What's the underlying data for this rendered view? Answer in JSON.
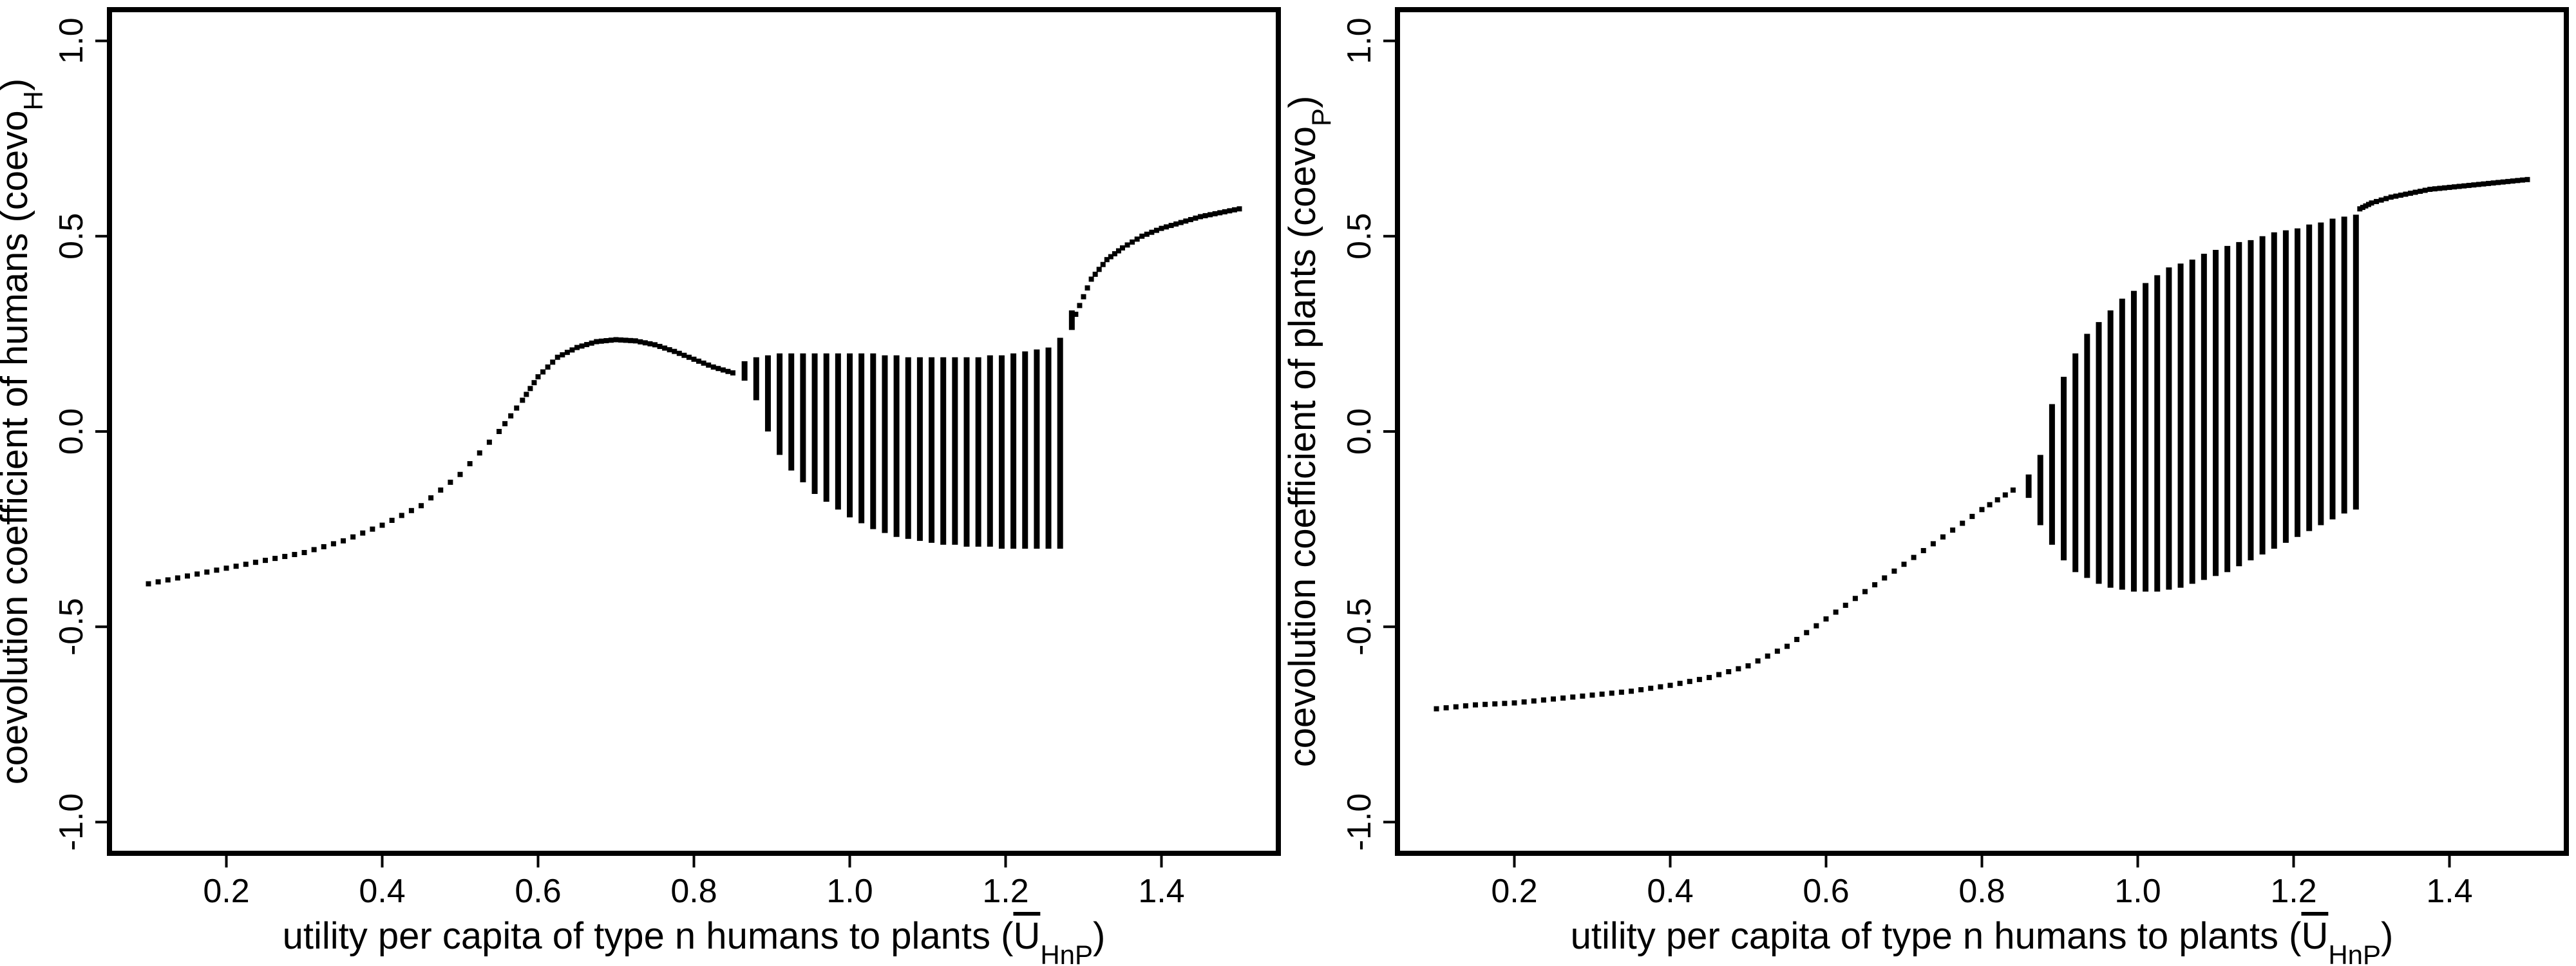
{
  "figure": {
    "colors": {
      "ink": "#000000",
      "background": "#ffffff"
    }
  },
  "chart_data": [
    {
      "type": "scatter",
      "title": "",
      "xlabel": "utility per capita of type n humans to plants (",
      "xlabel_symbol": "U",
      "xlabel_subscript": "HnP",
      "xlabel_close": ")",
      "ylabel": "coevolution coefficient of humans (coevo",
      "ylabel_subscript": "H",
      "ylabel_close": ")",
      "xlim": [
        0.05,
        1.55
      ],
      "ylim": [
        -1.08,
        1.08
      ],
      "x_ticks": [
        "0.2",
        "0.4",
        "0.6",
        "0.8",
        "1.0",
        "1.2",
        "1.4"
      ],
      "y_ticks": [
        "-1.0",
        "-0.5",
        "0.0",
        "0.5",
        "1.0"
      ],
      "grid": false,
      "series": [
        {
          "x": [
            0.1,
            0.15,
            0.2,
            0.25,
            0.3,
            0.35,
            0.4,
            0.45,
            0.5,
            0.55,
            0.58,
            0.6,
            0.625,
            0.65,
            0.675,
            0.7,
            0.725,
            0.75,
            0.775,
            0.8,
            0.825,
            0.85,
            1.29,
            1.31,
            1.33,
            1.35,
            1.375,
            1.4,
            1.425,
            1.45,
            1.475,
            1.5
          ],
          "y": [
            -0.39,
            -0.37,
            -0.35,
            -0.33,
            -0.31,
            -0.28,
            -0.24,
            -0.19,
            -0.11,
            0.0,
            0.08,
            0.14,
            0.19,
            0.215,
            0.23,
            0.235,
            0.232,
            0.222,
            0.205,
            0.185,
            0.165,
            0.15,
            0.3,
            0.39,
            0.44,
            0.47,
            0.5,
            0.52,
            0.535,
            0.55,
            0.56,
            0.57
          ]
        }
      ],
      "bifurcation_ranges": [
        {
          "x": 0.865,
          "ymin": 0.13,
          "ymax": 0.18
        },
        {
          "x": 0.88,
          "ymin": 0.08,
          "ymax": 0.19
        },
        {
          "x": 0.895,
          "ymin": 0.0,
          "ymax": 0.195
        },
        {
          "x": 0.91,
          "ymin": -0.06,
          "ymax": 0.2
        },
        {
          "x": 0.925,
          "ymin": -0.1,
          "ymax": 0.2
        },
        {
          "x": 0.94,
          "ymin": -0.13,
          "ymax": 0.2
        },
        {
          "x": 0.955,
          "ymin": -0.16,
          "ymax": 0.2
        },
        {
          "x": 0.97,
          "ymin": -0.18,
          "ymax": 0.2
        },
        {
          "x": 0.985,
          "ymin": -0.2,
          "ymax": 0.2
        },
        {
          "x": 1.0,
          "ymin": -0.22,
          "ymax": 0.2
        },
        {
          "x": 1.015,
          "ymin": -0.235,
          "ymax": 0.2
        },
        {
          "x": 1.03,
          "ymin": -0.25,
          "ymax": 0.2
        },
        {
          "x": 1.045,
          "ymin": -0.26,
          "ymax": 0.195
        },
        {
          "x": 1.06,
          "ymin": -0.27,
          "ymax": 0.195
        },
        {
          "x": 1.075,
          "ymin": -0.275,
          "ymax": 0.19
        },
        {
          "x": 1.09,
          "ymin": -0.28,
          "ymax": 0.19
        },
        {
          "x": 1.105,
          "ymin": -0.285,
          "ymax": 0.19
        },
        {
          "x": 1.12,
          "ymin": -0.29,
          "ymax": 0.19
        },
        {
          "x": 1.135,
          "ymin": -0.29,
          "ymax": 0.19
        },
        {
          "x": 1.15,
          "ymin": -0.295,
          "ymax": 0.19
        },
        {
          "x": 1.165,
          "ymin": -0.295,
          "ymax": 0.19
        },
        {
          "x": 1.18,
          "ymin": -0.295,
          "ymax": 0.195
        },
        {
          "x": 1.195,
          "ymin": -0.3,
          "ymax": 0.195
        },
        {
          "x": 1.21,
          "ymin": -0.3,
          "ymax": 0.2
        },
        {
          "x": 1.225,
          "ymin": -0.3,
          "ymax": 0.205
        },
        {
          "x": 1.24,
          "ymin": -0.3,
          "ymax": 0.21
        },
        {
          "x": 1.255,
          "ymin": -0.3,
          "ymax": 0.215
        },
        {
          "x": 1.27,
          "ymin": -0.3,
          "ymax": 0.24
        },
        {
          "x": 1.285,
          "ymin": 0.26,
          "ymax": 0.31
        }
      ]
    },
    {
      "type": "scatter",
      "title": "",
      "xlabel": "utility per capita of type n humans to plants (",
      "xlabel_symbol": "U",
      "xlabel_subscript": "HnP",
      "xlabel_close": ")",
      "ylabel": "coevolution coefficient of plants (coevo",
      "ylabel_subscript": "P",
      "ylabel_close": ")",
      "xlim": [
        0.05,
        1.55
      ],
      "ylim": [
        -1.08,
        1.08
      ],
      "x_ticks": [
        "0.2",
        "0.4",
        "0.6",
        "0.8",
        "1.0",
        "1.2",
        "1.4"
      ],
      "y_ticks": [
        "-1.0",
        "-0.5",
        "0.0",
        "0.5",
        "1.0"
      ],
      "grid": false,
      "series": [
        {
          "x": [
            0.1,
            0.15,
            0.2,
            0.25,
            0.3,
            0.35,
            0.4,
            0.45,
            0.5,
            0.55,
            0.6,
            0.65,
            0.7,
            0.75,
            0.8,
            0.84,
            1.285,
            1.3,
            1.325,
            1.35,
            1.375,
            1.4,
            1.425,
            1.45,
            1.475,
            1.5
          ],
          "y": [
            -0.71,
            -0.7,
            -0.695,
            -0.685,
            -0.675,
            -0.665,
            -0.65,
            -0.63,
            -0.6,
            -0.55,
            -0.48,
            -0.41,
            -0.34,
            -0.27,
            -0.2,
            -0.15,
            0.57,
            0.585,
            0.6,
            0.61,
            0.62,
            0.625,
            0.63,
            0.635,
            0.64,
            0.645
          ]
        }
      ],
      "bifurcation_ranges": [
        {
          "x": 0.86,
          "ymin": -0.17,
          "ymax": -0.11
        },
        {
          "x": 0.875,
          "ymin": -0.24,
          "ymax": -0.06
        },
        {
          "x": 0.89,
          "ymin": -0.29,
          "ymax": 0.07
        },
        {
          "x": 0.905,
          "ymin": -0.33,
          "ymax": 0.14
        },
        {
          "x": 0.92,
          "ymin": -0.36,
          "ymax": 0.2
        },
        {
          "x": 0.935,
          "ymin": -0.375,
          "ymax": 0.25
        },
        {
          "x": 0.95,
          "ymin": -0.39,
          "ymax": 0.28
        },
        {
          "x": 0.965,
          "ymin": -0.4,
          "ymax": 0.31
        },
        {
          "x": 0.98,
          "ymin": -0.405,
          "ymax": 0.34
        },
        {
          "x": 0.995,
          "ymin": -0.41,
          "ymax": 0.36
        },
        {
          "x": 1.01,
          "ymin": -0.41,
          "ymax": 0.38
        },
        {
          "x": 1.025,
          "ymin": -0.41,
          "ymax": 0.4
        },
        {
          "x": 1.04,
          "ymin": -0.405,
          "ymax": 0.42
        },
        {
          "x": 1.055,
          "ymin": -0.4,
          "ymax": 0.43
        },
        {
          "x": 1.07,
          "ymin": -0.39,
          "ymax": 0.44
        },
        {
          "x": 1.085,
          "ymin": -0.38,
          "ymax": 0.455
        },
        {
          "x": 1.1,
          "ymin": -0.37,
          "ymax": 0.465
        },
        {
          "x": 1.115,
          "ymin": -0.36,
          "ymax": 0.475
        },
        {
          "x": 1.13,
          "ymin": -0.345,
          "ymax": 0.485
        },
        {
          "x": 1.145,
          "ymin": -0.33,
          "ymax": 0.49
        },
        {
          "x": 1.16,
          "ymin": -0.315,
          "ymax": 0.5
        },
        {
          "x": 1.175,
          "ymin": -0.3,
          "ymax": 0.51
        },
        {
          "x": 1.19,
          "ymin": -0.285,
          "ymax": 0.515
        },
        {
          "x": 1.205,
          "ymin": -0.27,
          "ymax": 0.52
        },
        {
          "x": 1.22,
          "ymin": -0.255,
          "ymax": 0.53
        },
        {
          "x": 1.235,
          "ymin": -0.24,
          "ymax": 0.535
        },
        {
          "x": 1.25,
          "ymin": -0.225,
          "ymax": 0.545
        },
        {
          "x": 1.265,
          "ymin": -0.21,
          "ymax": 0.55
        },
        {
          "x": 1.28,
          "ymin": -0.2,
          "ymax": 0.555
        }
      ]
    }
  ]
}
